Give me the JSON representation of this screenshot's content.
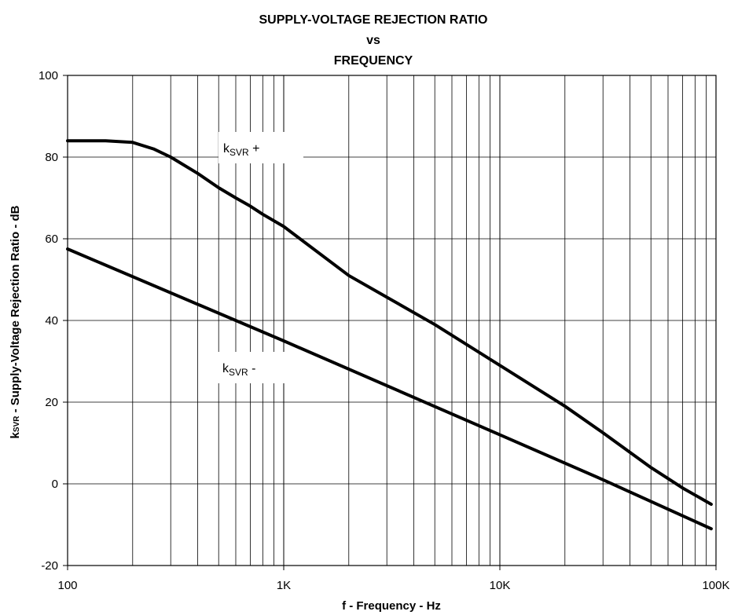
{
  "chart_data": {
    "type": "line",
    "title_lines": [
      "SUPPLY-VOLTAGE REJECTION RATIO",
      "vs",
      "FREQUENCY"
    ],
    "xlabel": "f - Frequency - Hz",
    "ylabel": {
      "k": "k",
      "sub": "SVR",
      "rest": " - Supply-Voltage Rejection Ratio - dB"
    },
    "x_scale": "log",
    "xlim": [
      100,
      100000
    ],
    "ylim": [
      -20,
      100
    ],
    "x_ticks": [
      100,
      1000,
      10000,
      100000
    ],
    "x_tick_labels": [
      "100",
      "1K",
      "10K",
      "100K"
    ],
    "y_ticks": [
      -20,
      0,
      20,
      40,
      60,
      80,
      100
    ],
    "y_tick_labels": [
      "-20",
      "0",
      "20",
      "40",
      "60",
      "80",
      "100"
    ],
    "grid": true,
    "series": [
      {
        "name": "kSVR +",
        "label": {
          "k": "k",
          "sub": "SVR",
          "rest": " +"
        },
        "x": [
          100,
          150,
          200,
          250,
          300,
          400,
          500,
          600,
          700,
          800,
          1000,
          2000,
          5000,
          10000,
          20000,
          30000,
          50000,
          70000,
          95000
        ],
        "y": [
          84,
          84,
          83.6,
          82,
          80,
          76,
          72.5,
          70,
          68,
          66,
          63,
          51,
          39,
          29,
          19,
          12.5,
          4,
          -1,
          -5
        ]
      },
      {
        "name": "kSVR -",
        "label": {
          "k": "k",
          "sub": "SVR",
          "rest": " -"
        },
        "x": [
          100,
          1000,
          10000,
          30000,
          95000
        ],
        "y": [
          57.5,
          35,
          12,
          1,
          -11
        ]
      }
    ]
  }
}
